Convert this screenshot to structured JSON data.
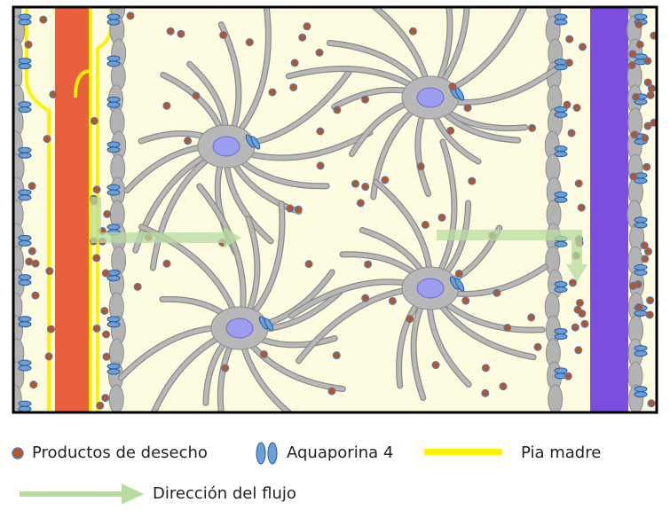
{
  "legend": {
    "waste": "Productos de desecho",
    "aquaporin": "Aquaporina 4",
    "pia": "Pia madre",
    "flow": "Dirección del flujo"
  }
}
